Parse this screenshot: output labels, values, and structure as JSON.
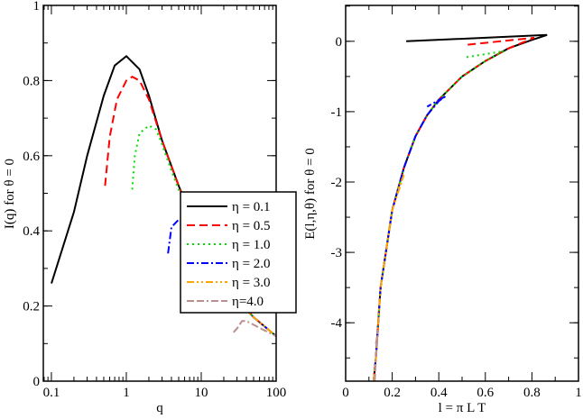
{
  "chart_data": [
    {
      "type": "line",
      "xlabel": "q",
      "ylabel": "I(q) for θ = 0",
      "xscale": "log",
      "xlim": [
        0.078,
        100
      ],
      "ylim": [
        0,
        1
      ],
      "xticks": [
        0.1,
        1,
        10,
        100
      ],
      "xtick_labels": [
        "0.1",
        "1",
        "10",
        "100"
      ],
      "yticks": [
        0,
        0.2,
        0.4,
        0.6,
        0.8,
        1
      ],
      "ytick_labels": [
        "0",
        "0.2",
        "0.4",
        "0.6",
        "0.8",
        "1"
      ],
      "grid": false,
      "series": [
        {
          "name": "η = 0.1",
          "color": "#000000",
          "dash": "solid",
          "x": [
            0.1,
            0.2,
            0.3,
            0.5,
            0.7,
            1,
            1.5,
            2,
            3,
            5,
            7,
            10,
            20,
            30,
            50,
            100
          ],
          "y": [
            0.26,
            0.45,
            0.6,
            0.76,
            0.84,
            0.865,
            0.83,
            0.76,
            0.64,
            0.52,
            0.45,
            0.38,
            0.27,
            0.22,
            0.17,
            0.12
          ]
        },
        {
          "name": "η = 0.5",
          "color": "#ff0000",
          "dash": "dashed",
          "x": [
            0.52,
            0.6,
            0.75,
            1,
            1.2,
            1.5,
            2,
            3,
            5,
            7,
            10,
            20,
            30,
            50,
            100
          ],
          "y": [
            0.52,
            0.65,
            0.75,
            0.8,
            0.81,
            0.8,
            0.75,
            0.64,
            0.52,
            0.45,
            0.38,
            0.27,
            0.22,
            0.17,
            0.12
          ]
        },
        {
          "name": "η = 1.0",
          "color": "#00dd00",
          "dash": "dotted",
          "x": [
            1.2,
            1.3,
            1.5,
            2,
            2.5,
            3,
            4,
            5,
            7,
            10,
            20,
            30,
            50,
            100
          ],
          "y": [
            0.51,
            0.6,
            0.66,
            0.68,
            0.67,
            0.63,
            0.56,
            0.51,
            0.45,
            0.38,
            0.27,
            0.22,
            0.17,
            0.12
          ]
        },
        {
          "name": "η = 2.0",
          "color": "#0000ff",
          "dash": "dashdot",
          "x": [
            3.6,
            4,
            5,
            6,
            8,
            10,
            15,
            20,
            30,
            50,
            100
          ],
          "y": [
            0.34,
            0.41,
            0.43,
            0.42,
            0.39,
            0.35,
            0.3,
            0.27,
            0.22,
            0.17,
            0.12
          ]
        },
        {
          "name": "η = 3.0",
          "color": "#ffa500",
          "dash": "dashdotdot",
          "x": [
            10,
            11,
            13,
            15,
            20,
            30,
            50,
            100
          ],
          "y": [
            0.21,
            0.24,
            0.26,
            0.26,
            0.24,
            0.21,
            0.17,
            0.12
          ]
        },
        {
          "name": "η=4.0",
          "color": "#bc8f8f",
          "dash": "dashdashdot",
          "x": [
            27,
            30,
            35,
            40,
            50,
            70,
            100
          ],
          "y": [
            0.13,
            0.14,
            0.16,
            0.16,
            0.15,
            0.135,
            0.12
          ]
        }
      ],
      "legend": "center-right"
    },
    {
      "type": "line",
      "xlabel": "l = π  L T",
      "ylabel": "E(l,η,θ)  for θ = 0",
      "xlim": [
        0,
        1
      ],
      "ylim": [
        -4.83,
        0.51
      ],
      "xticks": [
        0,
        0.2,
        0.4,
        0.6,
        0.8,
        1
      ],
      "xtick_labels": [
        "0",
        "0.2",
        "0.4",
        "0.6",
        "0.8",
        "1"
      ],
      "yticks": [
        0,
        -1,
        -2,
        -3,
        -4
      ],
      "ytick_labels": [
        "0",
        "-1",
        "-2",
        "-3",
        "-4"
      ],
      "grid": false,
      "series": [
        {
          "name": "η = 0.1",
          "color": "#000000",
          "dash": "solid",
          "x": [
            0.12,
            0.13,
            0.15,
            0.2,
            0.25,
            0.3,
            0.35,
            0.4,
            0.5,
            0.6,
            0.7,
            0.8,
            0.865,
            0.26
          ],
          "y": [
            -4.83,
            -4.5,
            -3.5,
            -2.4,
            -1.8,
            -1.35,
            -1.05,
            -0.83,
            -0.5,
            -0.28,
            -0.1,
            0.02,
            0.09,
            0.0
          ]
        },
        {
          "name": "η = 0.5",
          "color": "#ff0000",
          "dash": "dashed",
          "x": [
            0.12,
            0.13,
            0.15,
            0.2,
            0.25,
            0.3,
            0.35,
            0.4,
            0.5,
            0.6,
            0.7,
            0.81,
            0.52
          ],
          "y": [
            -4.83,
            -4.5,
            -3.5,
            -2.4,
            -1.8,
            -1.35,
            -1.05,
            -0.83,
            -0.5,
            -0.28,
            -0.1,
            0.05,
            -0.05
          ]
        },
        {
          "name": "η = 1.0",
          "color": "#00dd00",
          "dash": "dotted",
          "x": [
            0.12,
            0.13,
            0.15,
            0.2,
            0.25,
            0.3,
            0.35,
            0.4,
            0.5,
            0.6,
            0.68,
            0.51
          ],
          "y": [
            -4.83,
            -4.5,
            -3.5,
            -2.4,
            -1.8,
            -1.35,
            -1.05,
            -0.83,
            -0.5,
            -0.28,
            -0.14,
            -0.23
          ]
        },
        {
          "name": "η = 2.0",
          "color": "#0000ff",
          "dash": "dashdot",
          "x": [
            0.12,
            0.13,
            0.15,
            0.2,
            0.25,
            0.3,
            0.35,
            0.4,
            0.43,
            0.35
          ],
          "y": [
            -4.83,
            -4.5,
            -3.5,
            -2.4,
            -1.8,
            -1.35,
            -1.05,
            -0.85,
            -0.78,
            -0.93
          ]
        },
        {
          "name": "η = 3.0",
          "color": "#ffa500",
          "dash": "dashdotdot",
          "x": [
            0.12,
            0.13,
            0.15,
            0.2,
            0.25,
            0.22
          ],
          "y": [
            -4.83,
            -4.5,
            -3.5,
            -2.4,
            -1.9,
            -2.15
          ]
        },
        {
          "name": "η=4.0",
          "color": "#bc8f8f",
          "dash": "dashdashdot",
          "x": [
            0.125,
            0.13,
            0.14,
            0.13
          ],
          "y": [
            -4.83,
            -4.5,
            -4.1,
            -4.3
          ]
        }
      ]
    }
  ]
}
